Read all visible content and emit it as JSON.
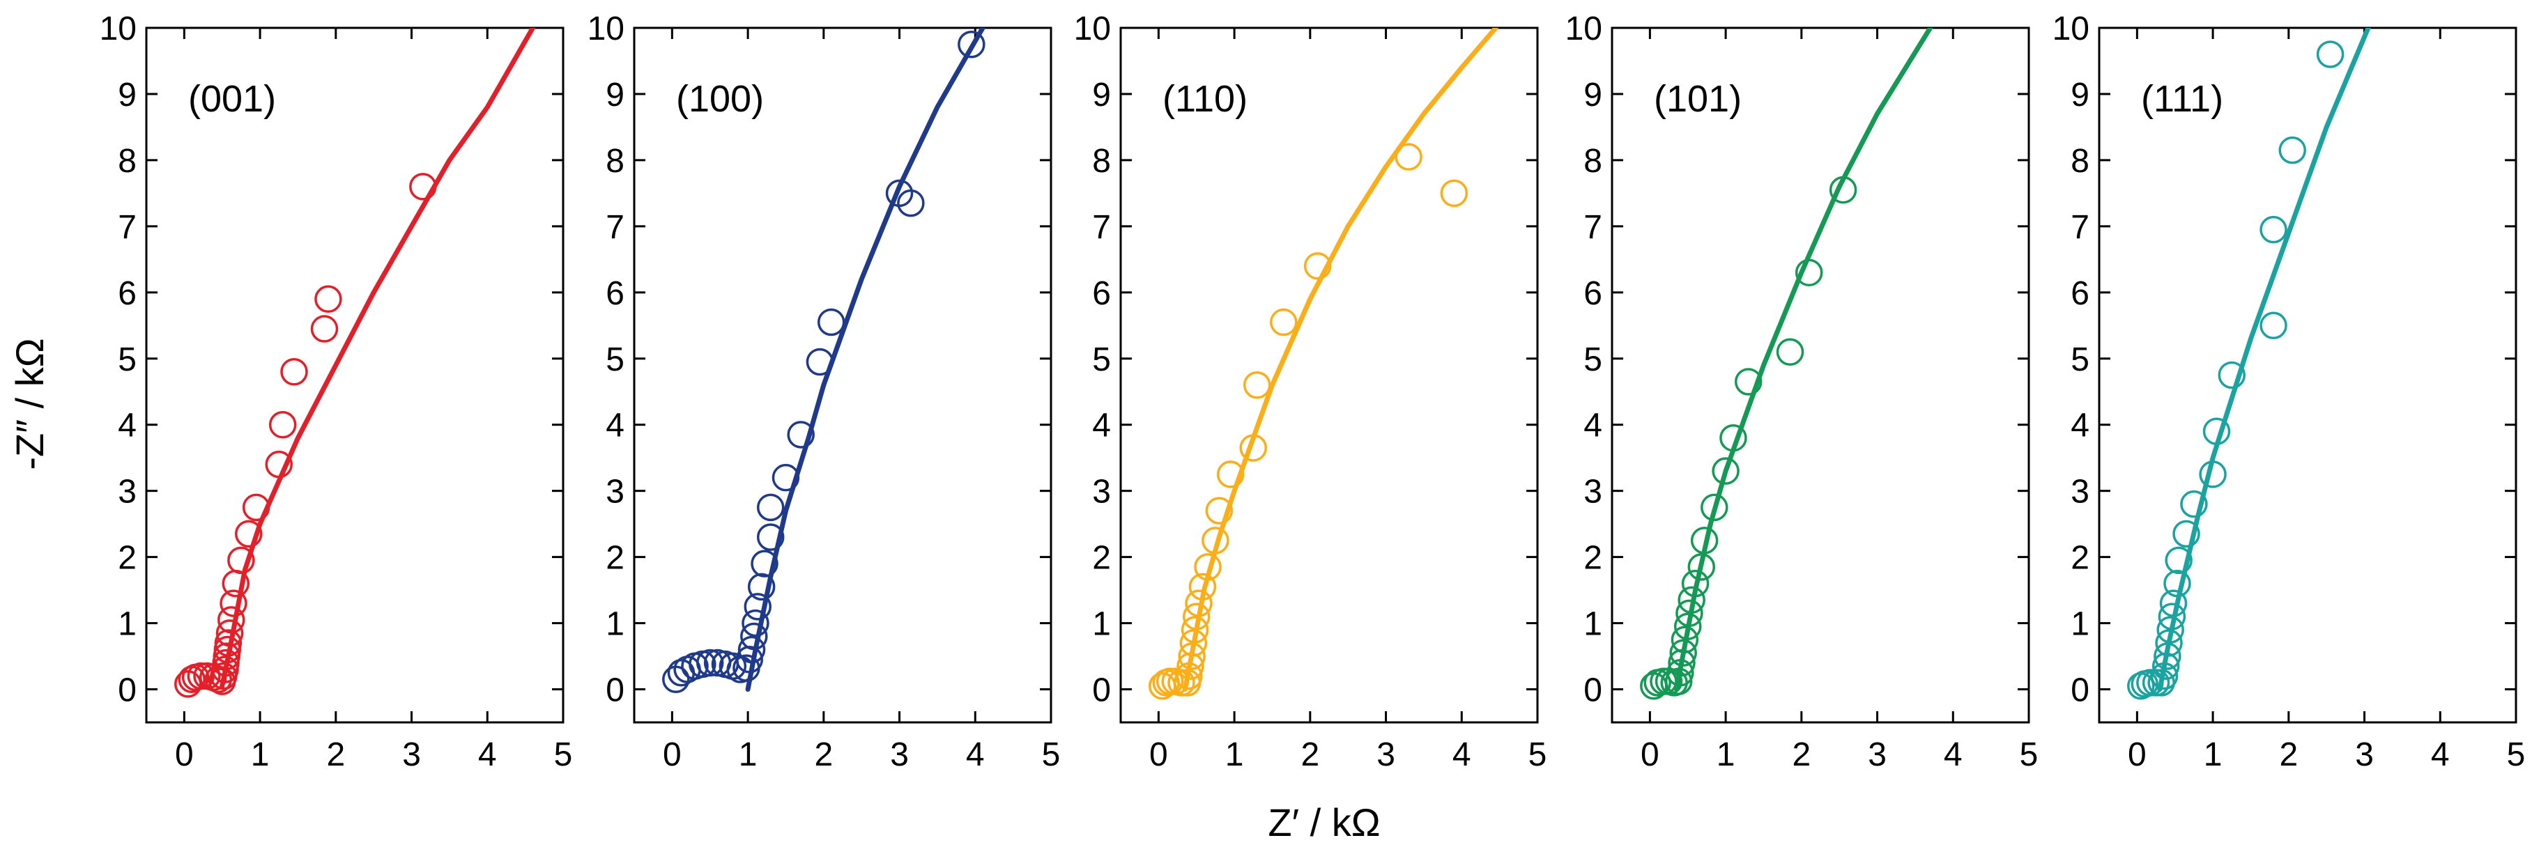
{
  "figure": {
    "xlabel": "Z′ / kΩ",
    "ylabel": "-Z″ / kΩ"
  },
  "chart_data": [
    {
      "type": "scatter",
      "label": "(001)",
      "color": "#e3202a",
      "xlim": [
        -0.5,
        5
      ],
      "ylim": [
        -0.5,
        10
      ],
      "xticks": [
        0,
        1,
        2,
        3,
        4,
        5
      ],
      "yticks": [
        0,
        1,
        2,
        3,
        4,
        5,
        6,
        7,
        8,
        9,
        10
      ],
      "xlabel": "Z′ / kΩ",
      "ylabel": "-Z″ / kΩ",
      "points": [
        [
          0.05,
          0.08
        ],
        [
          0.1,
          0.15
        ],
        [
          0.15,
          0.18
        ],
        [
          0.22,
          0.2
        ],
        [
          0.3,
          0.2
        ],
        [
          0.38,
          0.18
        ],
        [
          0.45,
          0.15
        ],
        [
          0.5,
          0.12
        ],
        [
          0.52,
          0.2
        ],
        [
          0.54,
          0.3
        ],
        [
          0.55,
          0.4
        ],
        [
          0.56,
          0.5
        ],
        [
          0.57,
          0.6
        ],
        [
          0.58,
          0.7
        ],
        [
          0.6,
          0.85
        ],
        [
          0.62,
          1.05
        ],
        [
          0.65,
          1.3
        ],
        [
          0.68,
          1.6
        ],
        [
          0.75,
          1.95
        ],
        [
          0.85,
          2.35
        ],
        [
          0.95,
          2.75
        ],
        [
          1.25,
          3.4
        ],
        [
          1.3,
          4.0
        ],
        [
          1.45,
          4.8
        ],
        [
          1.85,
          5.45
        ],
        [
          1.9,
          5.9
        ],
        [
          3.15,
          7.6
        ]
      ],
      "fit": [
        [
          0.5,
          0.05
        ],
        [
          0.6,
          0.6
        ],
        [
          0.8,
          1.8
        ],
        [
          1.0,
          2.5
        ],
        [
          1.5,
          3.8
        ],
        [
          2.0,
          4.9
        ],
        [
          2.5,
          6.0
        ],
        [
          3.0,
          7.0
        ],
        [
          3.5,
          8.0
        ],
        [
          4.0,
          8.8
        ],
        [
          4.6,
          10.0
        ]
      ]
    },
    {
      "type": "scatter",
      "label": "(100)",
      "color": "#1f3a8a",
      "xlim": [
        -0.5,
        5
      ],
      "ylim": [
        -0.5,
        10
      ],
      "xticks": [
        0,
        1,
        2,
        3,
        4,
        5
      ],
      "yticks": [
        0,
        1,
        2,
        3,
        4,
        5,
        6,
        7,
        8,
        9,
        10
      ],
      "xlabel": "Z′ / kΩ",
      "ylabel": "-Z″ / kΩ",
      "points": [
        [
          0.05,
          0.15
        ],
        [
          0.12,
          0.25
        ],
        [
          0.2,
          0.3
        ],
        [
          0.3,
          0.35
        ],
        [
          0.4,
          0.38
        ],
        [
          0.5,
          0.4
        ],
        [
          0.6,
          0.4
        ],
        [
          0.7,
          0.38
        ],
        [
          0.8,
          0.35
        ],
        [
          0.9,
          0.3
        ],
        [
          0.98,
          0.32
        ],
        [
          1.02,
          0.45
        ],
        [
          1.05,
          0.6
        ],
        [
          1.08,
          0.8
        ],
        [
          1.1,
          1.0
        ],
        [
          1.13,
          1.25
        ],
        [
          1.18,
          1.55
        ],
        [
          1.22,
          1.9
        ],
        [
          1.3,
          2.3
        ],
        [
          1.3,
          2.75
        ],
        [
          1.5,
          3.2
        ],
        [
          1.7,
          3.85
        ],
        [
          1.95,
          4.95
        ],
        [
          2.1,
          5.55
        ],
        [
          3.0,
          7.5
        ],
        [
          3.15,
          7.35
        ],
        [
          3.95,
          9.75
        ]
      ],
      "fit": [
        [
          1.0,
          0.0
        ],
        [
          1.1,
          0.6
        ],
        [
          1.3,
          1.7
        ],
        [
          1.5,
          2.7
        ],
        [
          1.8,
          3.8
        ],
        [
          2.0,
          4.6
        ],
        [
          2.5,
          6.2
        ],
        [
          3.0,
          7.6
        ],
        [
          3.5,
          8.8
        ],
        [
          4.1,
          10.0
        ]
      ]
    },
    {
      "type": "scatter",
      "label": "(110)",
      "color": "#fbae17",
      "xlim": [
        -0.5,
        5
      ],
      "ylim": [
        -0.5,
        10
      ],
      "xticks": [
        0,
        1,
        2,
        3,
        4,
        5
      ],
      "yticks": [
        0,
        1,
        2,
        3,
        4,
        5,
        6,
        7,
        8,
        9,
        10
      ],
      "xlabel": "Z′ / kΩ",
      "ylabel": "-Z″ / kΩ",
      "points": [
        [
          0.05,
          0.05
        ],
        [
          0.1,
          0.1
        ],
        [
          0.15,
          0.12
        ],
        [
          0.22,
          0.12
        ],
        [
          0.3,
          0.1
        ],
        [
          0.38,
          0.1
        ],
        [
          0.4,
          0.2
        ],
        [
          0.42,
          0.35
        ],
        [
          0.44,
          0.5
        ],
        [
          0.46,
          0.7
        ],
        [
          0.48,
          0.9
        ],
        [
          0.5,
          1.1
        ],
        [
          0.53,
          1.3
        ],
        [
          0.58,
          1.55
        ],
        [
          0.65,
          1.85
        ],
        [
          0.75,
          2.25
        ],
        [
          0.8,
          2.7
        ],
        [
          0.95,
          3.25
        ],
        [
          1.25,
          3.65
        ],
        [
          1.3,
          4.6
        ],
        [
          1.65,
          5.55
        ],
        [
          2.1,
          6.4
        ],
        [
          3.3,
          8.05
        ],
        [
          3.9,
          7.5
        ]
      ],
      "fit": [
        [
          0.35,
          0.0
        ],
        [
          0.45,
          0.6
        ],
        [
          0.6,
          1.5
        ],
        [
          0.8,
          2.3
        ],
        [
          1.0,
          3.0
        ],
        [
          1.5,
          4.6
        ],
        [
          2.0,
          5.9
        ],
        [
          2.5,
          7.0
        ],
        [
          3.0,
          7.9
        ],
        [
          3.5,
          8.7
        ],
        [
          4.0,
          9.4
        ],
        [
          4.45,
          10.0
        ]
      ]
    },
    {
      "type": "scatter",
      "label": "(101)",
      "color": "#149a54",
      "xlim": [
        -0.5,
        5
      ],
      "ylim": [
        -0.5,
        10
      ],
      "xticks": [
        0,
        1,
        2,
        3,
        4,
        5
      ],
      "yticks": [
        0,
        1,
        2,
        3,
        4,
        5,
        6,
        7,
        8,
        9,
        10
      ],
      "xlabel": "Z′ / kΩ",
      "ylabel": "-Z″ / kΩ",
      "points": [
        [
          0.05,
          0.05
        ],
        [
          0.1,
          0.1
        ],
        [
          0.18,
          0.12
        ],
        [
          0.25,
          0.12
        ],
        [
          0.32,
          0.1
        ],
        [
          0.38,
          0.12
        ],
        [
          0.4,
          0.25
        ],
        [
          0.42,
          0.4
        ],
        [
          0.44,
          0.55
        ],
        [
          0.46,
          0.75
        ],
        [
          0.5,
          0.95
        ],
        [
          0.52,
          1.15
        ],
        [
          0.55,
          1.35
        ],
        [
          0.6,
          1.6
        ],
        [
          0.68,
          1.85
        ],
        [
          0.72,
          2.25
        ],
        [
          0.85,
          2.75
        ],
        [
          1.0,
          3.3
        ],
        [
          1.1,
          3.8
        ],
        [
          1.3,
          4.65
        ],
        [
          1.85,
          5.1
        ],
        [
          2.1,
          6.3
        ],
        [
          2.55,
          7.55
        ]
      ],
      "fit": [
        [
          0.35,
          0.0
        ],
        [
          0.45,
          0.6
        ],
        [
          0.6,
          1.5
        ],
        [
          0.8,
          2.5
        ],
        [
          1.0,
          3.3
        ],
        [
          1.5,
          4.9
        ],
        [
          2.0,
          6.3
        ],
        [
          2.5,
          7.6
        ],
        [
          3.0,
          8.7
        ],
        [
          3.7,
          10.0
        ]
      ]
    },
    {
      "type": "scatter",
      "label": "(111)",
      "color": "#1aa3a0",
      "xlim": [
        -0.5,
        5
      ],
      "ylim": [
        -0.5,
        10
      ],
      "xticks": [
        0,
        1,
        2,
        3,
        4,
        5
      ],
      "yticks": [
        0,
        1,
        2,
        3,
        4,
        5,
        6,
        7,
        8,
        9,
        10
      ],
      "xlabel": "Z′ / kΩ",
      "ylabel": "-Z″ / kΩ",
      "points": [
        [
          0.05,
          0.05
        ],
        [
          0.1,
          0.08
        ],
        [
          0.17,
          0.1
        ],
        [
          0.25,
          0.1
        ],
        [
          0.32,
          0.1
        ],
        [
          0.36,
          0.2
        ],
        [
          0.38,
          0.35
        ],
        [
          0.4,
          0.5
        ],
        [
          0.42,
          0.7
        ],
        [
          0.44,
          0.9
        ],
        [
          0.46,
          1.1
        ],
        [
          0.48,
          1.3
        ],
        [
          0.53,
          1.6
        ],
        [
          0.55,
          1.95
        ],
        [
          0.65,
          2.35
        ],
        [
          0.75,
          2.8
        ],
        [
          1.0,
          3.25
        ],
        [
          1.05,
          3.9
        ],
        [
          1.25,
          4.75
        ],
        [
          1.8,
          5.5
        ],
        [
          1.8,
          6.95
        ],
        [
          2.05,
          8.15
        ],
        [
          2.55,
          9.6
        ]
      ],
      "fit": [
        [
          0.3,
          0.0
        ],
        [
          0.4,
          0.6
        ],
        [
          0.55,
          1.4
        ],
        [
          0.8,
          2.6
        ],
        [
          1.0,
          3.5
        ],
        [
          1.5,
          5.3
        ],
        [
          2.0,
          6.9
        ],
        [
          2.5,
          8.5
        ],
        [
          3.05,
          10.0
        ]
      ]
    }
  ]
}
